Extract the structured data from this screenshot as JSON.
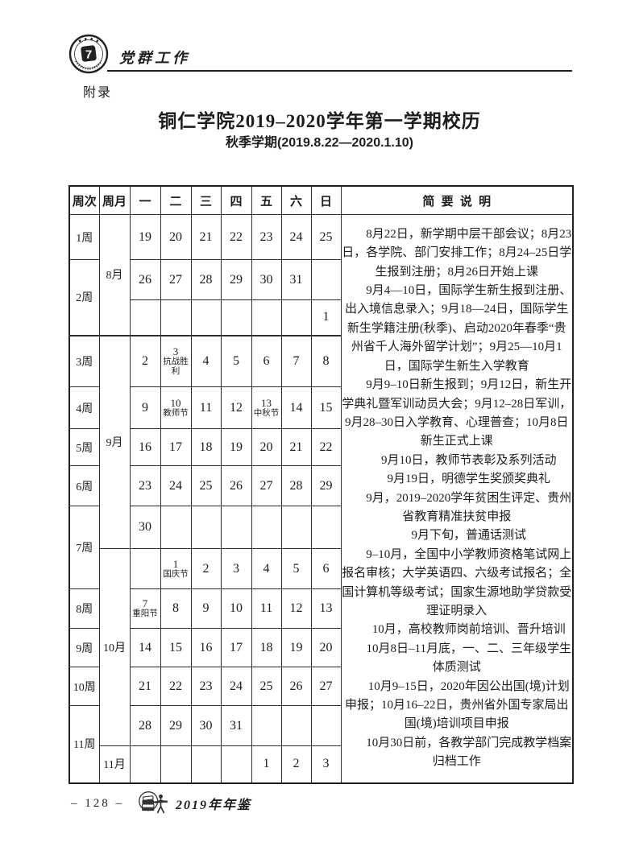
{
  "colors": {
    "ink": "#1d1d1d",
    "border": "#2e2e2e",
    "background": "#ffffff"
  },
  "header": {
    "section_label": "党群工作",
    "appendix_label": "附录",
    "seal_center_glyph": "7"
  },
  "document": {
    "title": "铜仁学院2019–2020学年第一学期校历",
    "subtitle": "秋季学期(2019.8.22—2020.1.10)"
  },
  "calendar": {
    "column_headers": [
      "周次",
      "周月",
      "一",
      "二",
      "三",
      "四",
      "五",
      "六",
      "日",
      "简要说明"
    ],
    "rows": [
      {
        "week": {
          "label": "1周",
          "span": 1
        },
        "month": {
          "label": "8月",
          "span": 3
        },
        "days": [
          "19",
          "20",
          "21",
          "22",
          "23",
          "24",
          "25"
        ]
      },
      {
        "week": {
          "label": "2周",
          "span": 2
        },
        "days": [
          "26",
          "27",
          "28",
          "29",
          "30",
          "31",
          ""
        ]
      },
      {
        "days": [
          "",
          "",
          "",
          "",
          "",
          "",
          "1"
        ]
      },
      {
        "week": {
          "label": "3周",
          "span": 1
        },
        "month": {
          "label": "9月",
          "span": 5
        },
        "days": [
          "2",
          {
            "num": "3",
            "holiday": "抗战胜利"
          },
          "4",
          "5",
          "6",
          "7",
          "8"
        ]
      },
      {
        "week": {
          "label": "4周",
          "span": 1
        },
        "days": [
          "9",
          {
            "num": "10",
            "holiday": "教师节"
          },
          "11",
          "12",
          {
            "num": "13",
            "holiday": "中秋节"
          },
          "14",
          "15"
        ]
      },
      {
        "week": {
          "label": "5周",
          "span": 1
        },
        "days": [
          "16",
          "17",
          "18",
          "19",
          "20",
          "21",
          "22"
        ]
      },
      {
        "week": {
          "label": "6周",
          "span": 1
        },
        "days": [
          "23",
          "24",
          "25",
          "26",
          "27",
          "28",
          "29"
        ]
      },
      {
        "week": {
          "label": "7周",
          "span": 2
        },
        "days": [
          "30",
          "",
          "",
          "",
          "",
          "",
          ""
        ]
      },
      {
        "month": {
          "label": "10月",
          "span": 5
        },
        "days": [
          "",
          {
            "num": "1",
            "holiday": "国庆节"
          },
          "2",
          "3",
          "4",
          "5",
          "6"
        ]
      },
      {
        "week": {
          "label": "8周",
          "span": 1
        },
        "days": [
          {
            "num": "7",
            "holiday": "重阳节"
          },
          "8",
          "9",
          "10",
          "11",
          "12",
          "13"
        ]
      },
      {
        "week": {
          "label": "9周",
          "span": 1
        },
        "days": [
          "14",
          "15",
          "16",
          "17",
          "18",
          "19",
          "20"
        ]
      },
      {
        "week": {
          "label": "10周",
          "span": 1
        },
        "days": [
          "21",
          "22",
          "23",
          "24",
          "25",
          "26",
          "27"
        ]
      },
      {
        "week": {
          "label": "11周",
          "span": 2
        },
        "days": [
          "28",
          "29",
          "30",
          "31",
          "",
          "",
          ""
        ]
      },
      {
        "month": {
          "label": "11月",
          "span": 1
        },
        "days": [
          "",
          "",
          "",
          "",
          "1",
          "2",
          "3"
        ]
      }
    ],
    "notes": [
      "8月22日，新学期中层干部会议；8月23日，各学院、部门安排工作；8月24–25日学生报到注册；8月26日开始上课",
      "9月4—10日，国际学生新生报到注册、出入境信息录入；9月18—24日，国际学生新生学籍注册(秋季)、启动2020年春季“贵州省千人海外留学计划”；9月25—10月1日，国际学生新生入学教育",
      "9月9–10日新生报到；9月12日，新生开学典礼暨军训动员大会；9月12–28日军训，9月28–30日入学教育、心理普查；10月8日新生正式上课",
      "9月10日，教师节表彰及系列活动",
      "9月19日，明德学生奖颁奖典礼",
      "9月，2019–2020学年贫困生评定、贵州省教育精准扶贫申报",
      "9月下旬，普通话测试",
      "9–10月，全国中小学教师资格笔试网上报名审核；大学英语四、六级考试报名；全国计算机等级考试；国家生源地助学贷款受理证明录入",
      "10月，高校教师岗前培训、晋升培训",
      "10月8日–11月底，一、二、三年级学生体质测试",
      "10月9–15日，2020年因公出国(境)计划申报；10月16–22日，贵州省外国专家局出国(境)培训项目申报",
      "10月30日前，各教学部门完成教学档案归档工作"
    ]
  },
  "footer": {
    "page_number": "– 128 –",
    "yearbook_label": "2019年年鉴"
  }
}
